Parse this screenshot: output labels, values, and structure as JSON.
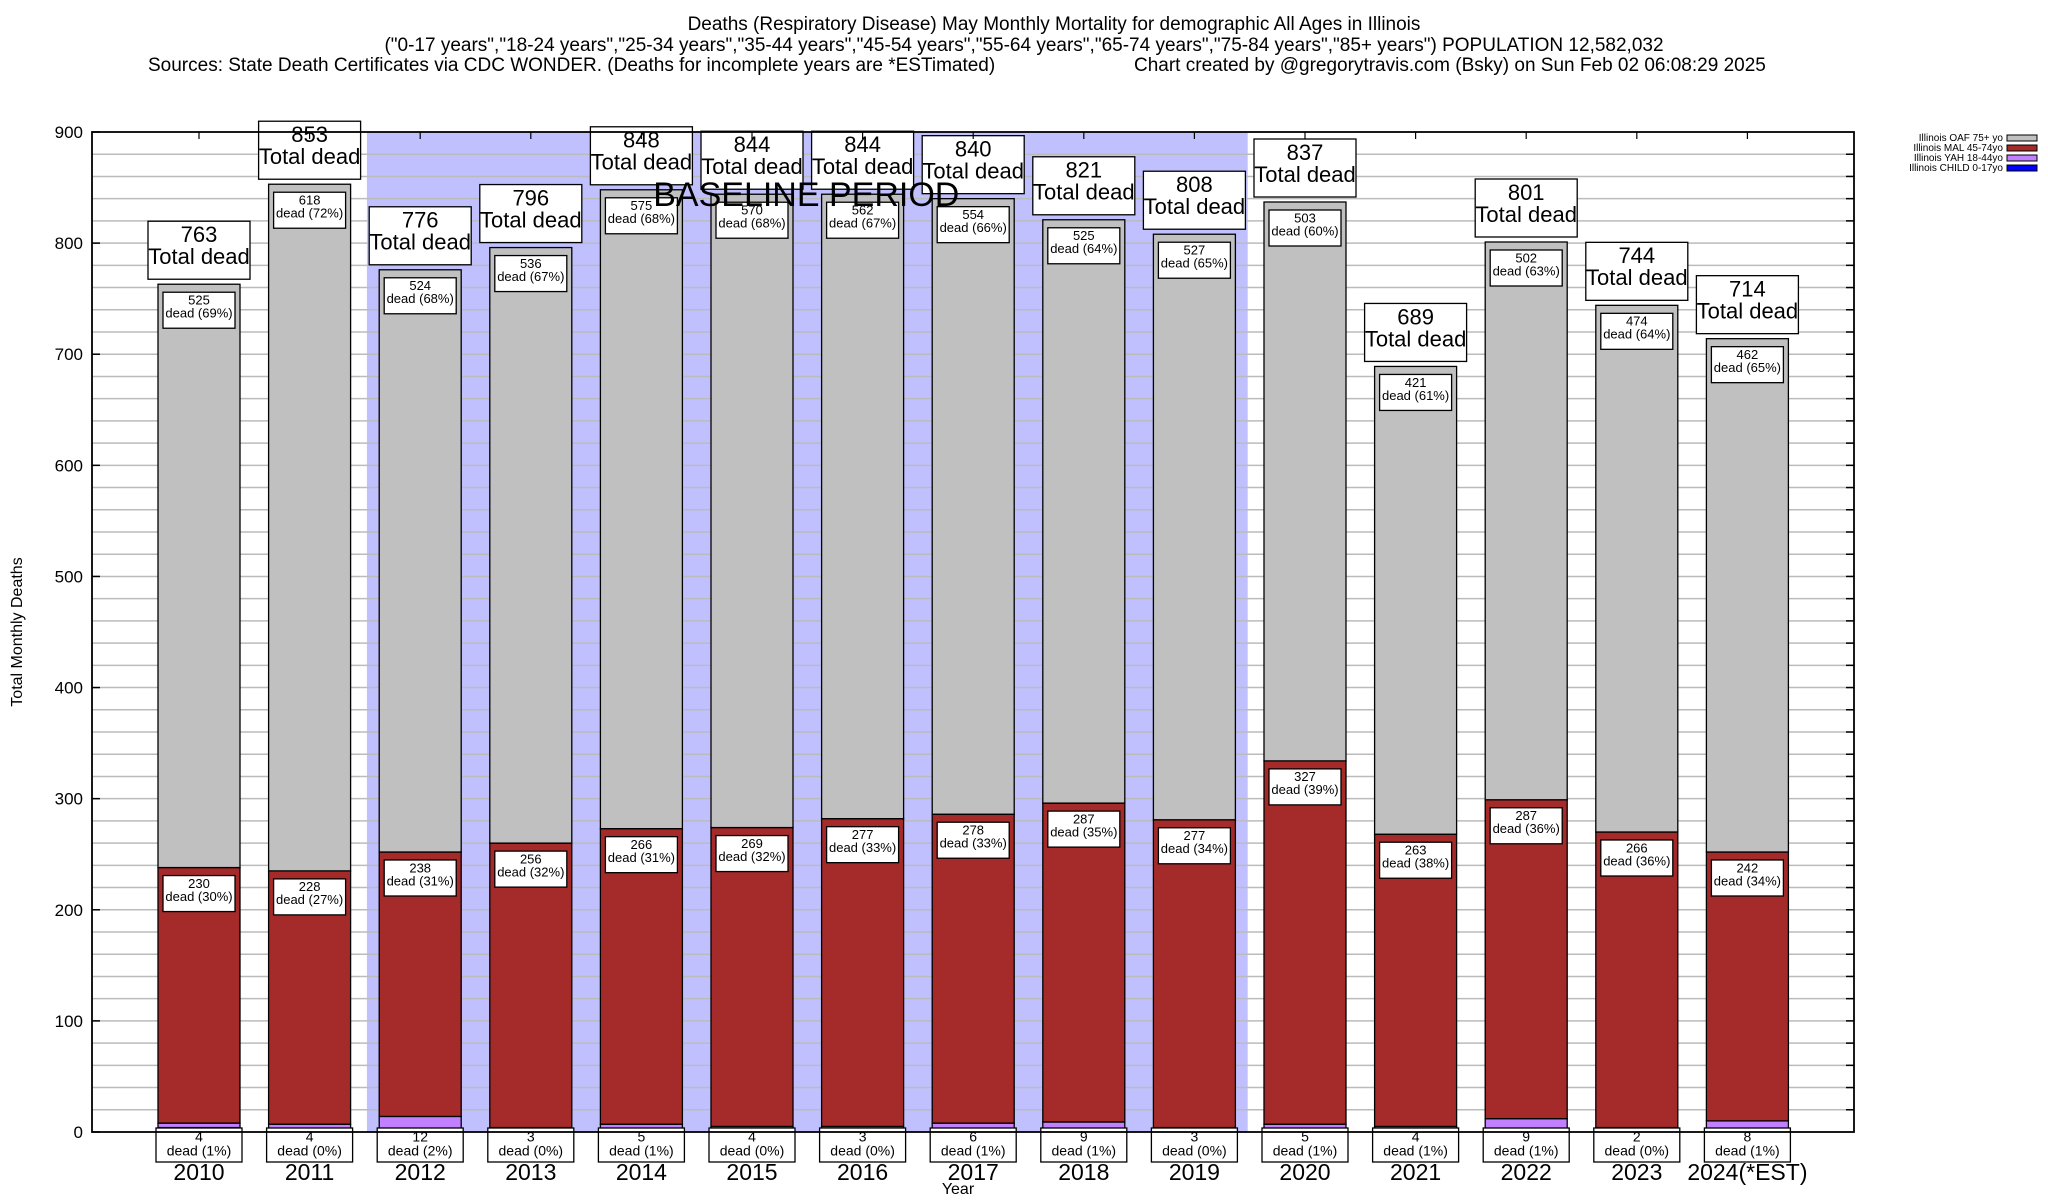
{
  "titles": {
    "line1": "Deaths (Respiratory Disease) May Monthly Mortality for demographic All Ages in Illinois",
    "line2": "(\"0-17 years\",\"18-24 years\",\"25-34 years\",\"35-44 years\",\"45-54 years\",\"55-64 years\",\"65-74 years\",\"75-84 years\",\"85+ years\") POPULATION 12,582,032",
    "line3_left": "Sources: State Death Certificates via CDC WONDER. (Deaths for incomplete years are *ESTimated)",
    "line3_right": "Chart created by @gregorytravis.com (Bsky) on Sun Feb 02 06:08:29 2025"
  },
  "chart_data": {
    "type": "bar",
    "stacked": true,
    "title": "Deaths (Respiratory Disease) May Monthly Mortality for demographic All Ages in Illinois",
    "xlabel": "Year",
    "ylabel": "Total Monthly Deaths",
    "ylim": [
      0,
      900
    ],
    "yticks": [
      0,
      100,
      200,
      300,
      400,
      500,
      600,
      700,
      800,
      900
    ],
    "minor_grid_step": 20,
    "grid": true,
    "legend_position": "outside-top-right",
    "annotation": "BASELINE PERIOD",
    "baseline_period": [
      "2012",
      "2019"
    ],
    "categories": [
      "2010",
      "2011",
      "2012",
      "2013",
      "2014",
      "2015",
      "2016",
      "2017",
      "2018",
      "2019",
      "2020",
      "2021",
      "2022",
      "2023",
      "2024(*EST)"
    ],
    "series": [
      {
        "name": "Illinois CHILD 0-17yo",
        "color": "#0000ff",
        "values": [
          4,
          3,
          2,
          1,
          2,
          1,
          2,
          2,
          0,
          1,
          2,
          1,
          3,
          2,
          2
        ]
      },
      {
        "name": "Illinois YAH 18-44yo",
        "color": "#c080ff",
        "values": [
          4,
          4,
          12,
          3,
          5,
          4,
          3,
          6,
          9,
          3,
          5,
          4,
          9,
          2,
          8
        ],
        "pct_labels": [
          "1%",
          "0%",
          "2%",
          "0%",
          "1%",
          "0%",
          "0%",
          "1%",
          "1%",
          "0%",
          "1%",
          "1%",
          "1%",
          "0%",
          "1%"
        ]
      },
      {
        "name": "Illinois MAL 45-74yo",
        "color": "#a52a2a",
        "values": [
          230,
          228,
          238,
          256,
          266,
          269,
          277,
          278,
          287,
          277,
          327,
          263,
          287,
          266,
          242
        ],
        "pct_labels": [
          "30%",
          "27%",
          "31%",
          "32%",
          "31%",
          "32%",
          "33%",
          "33%",
          "35%",
          "34%",
          "39%",
          "38%",
          "36%",
          "36%",
          "34%"
        ]
      },
      {
        "name": "Illinois OAF 75+ yo",
        "color": "#c0c0c0",
        "values": [
          525,
          618,
          524,
          536,
          575,
          570,
          562,
          554,
          525,
          527,
          503,
          421,
          502,
          474,
          462
        ],
        "pct_labels": [
          "69%",
          "72%",
          "68%",
          "67%",
          "68%",
          "68%",
          "67%",
          "66%",
          "64%",
          "65%",
          "60%",
          "61%",
          "63%",
          "64%",
          "65%"
        ]
      }
    ],
    "totals": [
      763,
      853,
      776,
      796,
      848,
      844,
      844,
      840,
      821,
      808,
      837,
      689,
      801,
      744,
      714
    ],
    "total_label_suffix": "Total dead",
    "segment_label_suffix": "dead",
    "legend_order": [
      "Illinois OAF 75+ yo",
      "Illinois MAL 45-74yo",
      "Illinois YAH 18-44yo",
      "Illinois CHILD 0-17yo"
    ]
  }
}
